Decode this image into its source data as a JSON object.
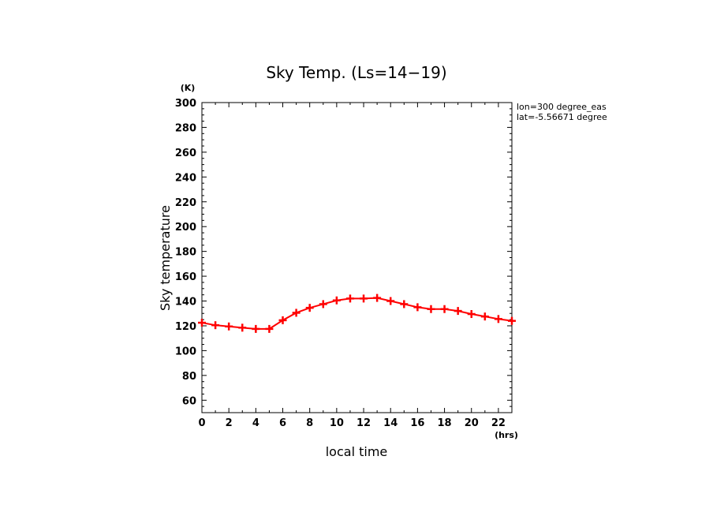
{
  "chart_data": {
    "type": "line",
    "title": "Sky Temp. (Ls=14−19)",
    "xlabel": "local time",
    "ylabel": "Sky temperature",
    "x_unit": "(hrs)",
    "y_unit": "(K)",
    "xlim": [
      0,
      23
    ],
    "ylim": [
      50,
      300
    ],
    "x_ticks": [
      0,
      2,
      4,
      6,
      8,
      10,
      12,
      14,
      16,
      18,
      20,
      22
    ],
    "y_ticks": [
      60,
      80,
      100,
      120,
      140,
      160,
      180,
      200,
      220,
      240,
      260,
      280,
      300
    ],
    "annotations": [
      "lon=300 degree_eas",
      "lat=-5.56671 degree"
    ],
    "grid": false,
    "series": [
      {
        "color": "#ff0000",
        "marker": "plus",
        "x": [
          0,
          1,
          2,
          3,
          4,
          5,
          6,
          7,
          8,
          9,
          10,
          11,
          12,
          13,
          14,
          15,
          16,
          17,
          18,
          19,
          20,
          21,
          22,
          23
        ],
        "values": [
          122.5,
          120.5,
          119.5,
          118.5,
          117.5,
          117.5,
          124.5,
          130.5,
          134.5,
          137.5,
          140.5,
          142.0,
          142.0,
          142.5,
          140.0,
          137.5,
          135.0,
          133.5,
          133.5,
          132.0,
          129.5,
          127.5,
          125.5,
          124.0
        ]
      }
    ]
  }
}
